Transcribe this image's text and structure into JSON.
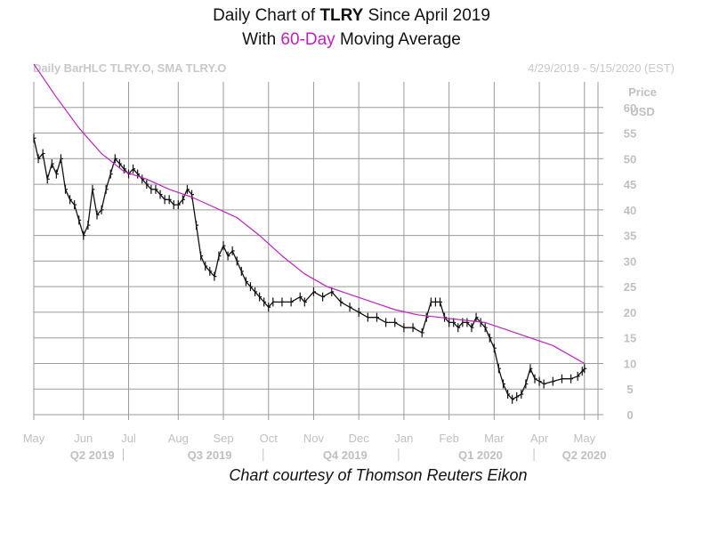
{
  "title": {
    "line1_pre": "Daily Chart of ",
    "line1_bold": "TLRY",
    "line1_post": " Since April 2019",
    "line2_pre": "With ",
    "line2_accent": "60-Day",
    "line2_post": " Moving Average"
  },
  "header": {
    "left": "Daily BarHLC TLRY.O, SMA TLRY.O",
    "right": "4/29/2019 - 5/15/2020 (EST)"
  },
  "caption": "Chart courtesy of Thomson Reuters Eikon",
  "colors": {
    "price": "#111111",
    "sma": "#c020c0",
    "grid": "#9a9a9a",
    "axis_text": "#c0c0c0"
  },
  "chart_data": {
    "type": "line",
    "title": "Daily Chart of TLRY Since April 2019",
    "subtitle": "With 60-Day Moving Average",
    "ylabel": "Price USD",
    "yaxis_title": [
      "Price",
      "USD"
    ],
    "ylim": [
      0,
      65
    ],
    "yticks": [
      0,
      5,
      10,
      15,
      20,
      25,
      30,
      35,
      40,
      45,
      50,
      55,
      60
    ],
    "y_side": "right",
    "grid": true,
    "x_range": [
      0,
      12.5
    ],
    "month_ticks": [
      {
        "label": "May",
        "x": 0
      },
      {
        "label": "Jun",
        "x": 1.1
      },
      {
        "label": "Jul",
        "x": 2.1
      },
      {
        "label": "Aug",
        "x": 3.2
      },
      {
        "label": "Sep",
        "x": 4.2
      },
      {
        "label": "Oct",
        "x": 5.2
      },
      {
        "label": "Nov",
        "x": 6.2
      },
      {
        "label": "Dec",
        "x": 7.2
      },
      {
        "label": "Jan",
        "x": 8.2
      },
      {
        "label": "Feb",
        "x": 9.2
      },
      {
        "label": "Mar",
        "x": 10.2
      },
      {
        "label": "Apr",
        "x": 11.2
      },
      {
        "label": "May",
        "x": 12.2
      }
    ],
    "quarter_labels": [
      {
        "label": "Q2 2019",
        "x": 1.0
      },
      {
        "label": "Q3 2019",
        "x": 3.6
      },
      {
        "label": "Q4 2019",
        "x": 6.6
      },
      {
        "label": "Q1 2020",
        "x": 9.6
      },
      {
        "label": "Q2 2020",
        "x": 11.9
      }
    ],
    "quarter_dividers": [
      2.1,
      5.2,
      8.2,
      11.2
    ],
    "series": [
      {
        "name": "TLRY.O",
        "kind": "price",
        "points": [
          [
            0.0,
            54
          ],
          [
            0.1,
            50
          ],
          [
            0.2,
            51
          ],
          [
            0.3,
            46
          ],
          [
            0.4,
            49
          ],
          [
            0.5,
            47
          ],
          [
            0.6,
            50
          ],
          [
            0.7,
            44
          ],
          [
            0.8,
            42
          ],
          [
            0.9,
            41
          ],
          [
            1.0,
            38
          ],
          [
            1.1,
            35
          ],
          [
            1.2,
            37
          ],
          [
            1.3,
            44
          ],
          [
            1.4,
            39
          ],
          [
            1.5,
            40
          ],
          [
            1.6,
            44
          ],
          [
            1.7,
            47
          ],
          [
            1.8,
            50
          ],
          [
            1.9,
            49
          ],
          [
            2.0,
            48
          ],
          [
            2.1,
            47
          ],
          [
            2.2,
            48
          ],
          [
            2.3,
            47
          ],
          [
            2.4,
            46
          ],
          [
            2.5,
            45
          ],
          [
            2.6,
            44
          ],
          [
            2.7,
            44
          ],
          [
            2.8,
            43
          ],
          [
            2.9,
            42
          ],
          [
            3.0,
            42
          ],
          [
            3.1,
            41
          ],
          [
            3.2,
            41
          ],
          [
            3.3,
            42
          ],
          [
            3.4,
            44
          ],
          [
            3.5,
            43
          ],
          [
            3.6,
            37
          ],
          [
            3.7,
            31
          ],
          [
            3.8,
            29
          ],
          [
            3.9,
            28
          ],
          [
            4.0,
            27
          ],
          [
            4.1,
            31
          ],
          [
            4.2,
            33
          ],
          [
            4.3,
            31
          ],
          [
            4.4,
            32
          ],
          [
            4.5,
            30
          ],
          [
            4.6,
            28
          ],
          [
            4.7,
            26
          ],
          [
            4.8,
            25
          ],
          [
            4.9,
            24
          ],
          [
            5.0,
            23
          ],
          [
            5.1,
            22
          ],
          [
            5.2,
            21
          ],
          [
            5.3,
            22
          ],
          [
            5.5,
            22
          ],
          [
            5.7,
            22
          ],
          [
            5.9,
            23
          ],
          [
            6.0,
            22
          ],
          [
            6.2,
            24
          ],
          [
            6.4,
            23
          ],
          [
            6.6,
            24
          ],
          [
            6.8,
            22
          ],
          [
            7.0,
            21
          ],
          [
            7.2,
            20
          ],
          [
            7.4,
            19
          ],
          [
            7.6,
            19
          ],
          [
            7.8,
            18
          ],
          [
            8.0,
            18
          ],
          [
            8.2,
            17
          ],
          [
            8.4,
            17
          ],
          [
            8.6,
            16
          ],
          [
            8.7,
            19
          ],
          [
            8.8,
            22
          ],
          [
            8.9,
            22
          ],
          [
            9.0,
            22
          ],
          [
            9.1,
            19
          ],
          [
            9.2,
            18
          ],
          [
            9.3,
            18
          ],
          [
            9.4,
            17
          ],
          [
            9.5,
            18
          ],
          [
            9.6,
            18
          ],
          [
            9.7,
            17
          ],
          [
            9.8,
            19
          ],
          [
            9.9,
            18
          ],
          [
            10.0,
            17
          ],
          [
            10.1,
            15
          ],
          [
            10.2,
            13
          ],
          [
            10.3,
            9
          ],
          [
            10.4,
            6
          ],
          [
            10.5,
            4
          ],
          [
            10.6,
            3
          ],
          [
            10.7,
            3.5
          ],
          [
            10.8,
            4
          ],
          [
            10.9,
            6
          ],
          [
            11.0,
            9
          ],
          [
            11.1,
            7
          ],
          [
            11.2,
            6.5
          ],
          [
            11.3,
            6
          ],
          [
            11.5,
            6.5
          ],
          [
            11.7,
            7
          ],
          [
            11.9,
            7
          ],
          [
            12.05,
            7.5
          ],
          [
            12.15,
            8.5
          ],
          [
            12.2,
            9
          ]
        ]
      },
      {
        "name": "60-Day SMA",
        "kind": "sma",
        "points": [
          [
            0.0,
            68.5
          ],
          [
            0.5,
            62
          ],
          [
            1.0,
            56
          ],
          [
            1.5,
            51
          ],
          [
            2.0,
            47.5
          ],
          [
            2.5,
            46
          ],
          [
            3.0,
            44
          ],
          [
            3.5,
            42.5
          ],
          [
            4.0,
            40.5
          ],
          [
            4.5,
            38.5
          ],
          [
            5.0,
            35
          ],
          [
            5.5,
            31
          ],
          [
            6.0,
            27.5
          ],
          [
            6.5,
            25
          ],
          [
            7.0,
            23.5
          ],
          [
            7.5,
            22
          ],
          [
            8.0,
            20.5
          ],
          [
            8.5,
            19.5
          ],
          [
            9.0,
            19
          ],
          [
            9.5,
            18.5
          ],
          [
            10.0,
            18
          ],
          [
            10.5,
            16.5
          ],
          [
            11.0,
            15
          ],
          [
            11.5,
            13.5
          ],
          [
            12.0,
            11
          ],
          [
            12.2,
            10
          ]
        ]
      }
    ]
  }
}
